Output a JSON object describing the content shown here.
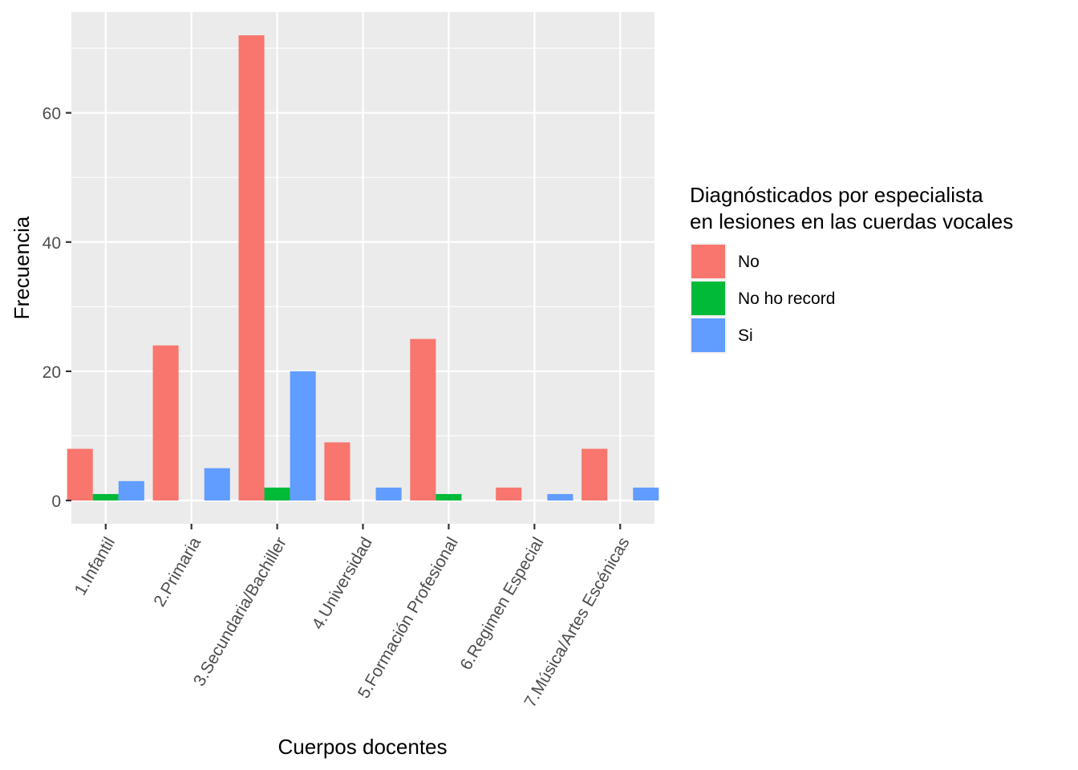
{
  "chart_data": {
    "type": "bar",
    "xlabel": "Cuerpos docentes",
    "ylabel": "Frecuencia",
    "ylim": [
      -3.6,
      75.6
    ],
    "yticks": [
      0,
      20,
      40,
      60
    ],
    "grid": true,
    "legend_position": "right",
    "legend_title": [
      "Diagnósticados por especialista",
      "en lesiones en las cuerdas vocales"
    ],
    "categories": [
      "1.Infantil",
      "2.Primaria",
      "3.Secundaria/Bachiller",
      "4.Universidad",
      "5.Formación Profesional",
      "6.Regimen Especial",
      "7.Música/Artes Escénicas"
    ],
    "series": [
      {
        "name": "No",
        "color": "#F8766D",
        "values": [
          8,
          24,
          72,
          9,
          25,
          2,
          8
        ]
      },
      {
        "name": "No ho record",
        "color": "#00BA38",
        "values": [
          1,
          0,
          2,
          0,
          1,
          0,
          0
        ]
      },
      {
        "name": "Si",
        "color": "#619CFF",
        "values": [
          3,
          5,
          20,
          2,
          0,
          1,
          2
        ]
      }
    ]
  }
}
